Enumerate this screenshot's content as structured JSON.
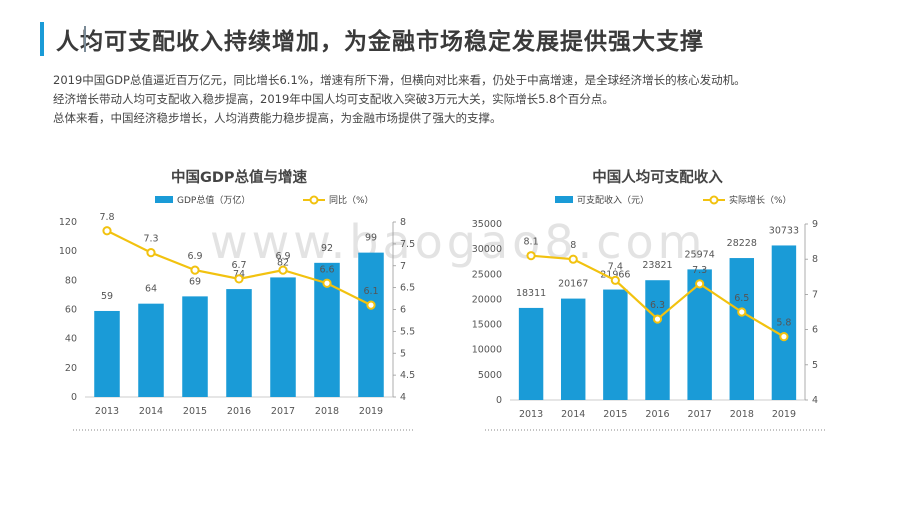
{
  "page_title": "人均可支配收入持续增加，为金融市场稳定发展提供强大支撑",
  "intro": [
    "2019中国GDP总值逼近百万亿元，同比增长6.1%，增速有所下滑，但横向对比来看，仍处于中高增速，是全球经济增长的核心发动机。",
    "经济增长带动人均可支配收入稳步提高，2019年中国人均可支配收入突破3万元大关，实际增长5.8个百分点。",
    "总体来看，中国经济稳步增长，人均消费能力稳步提高，为金融市场提供了强大的支撑。"
  ],
  "watermark": "www.baogao8.com",
  "colors": {
    "bar": "#1a9bd7",
    "line": "#f2c20f",
    "accent": "#1a9bd7"
  },
  "chart_data": [
    {
      "type": "bar",
      "title": "中国GDP总值与增速",
      "categories": [
        "2013",
        "2014",
        "2015",
        "2016",
        "2017",
        "2018",
        "2019"
      ],
      "series": [
        {
          "name": "GDP总值（万亿）",
          "kind": "bar",
          "axis": "left",
          "values": [
            59,
            64,
            69,
            74,
            82,
            92,
            99
          ],
          "labels": [
            "59",
            "64",
            "69",
            "74",
            "82",
            "92",
            "99"
          ]
        },
        {
          "name": "同比（%）",
          "kind": "line",
          "axis": "right",
          "values": [
            7.8,
            7.3,
            6.9,
            6.7,
            6.9,
            6.6,
            6.1
          ],
          "labels": [
            "7.8",
            "7.3",
            "6.9",
            "6.7",
            "6.9",
            "6.6",
            "6.1"
          ]
        }
      ],
      "left_axis": {
        "ylim": [
          0,
          120
        ],
        "ticks": [
          "0",
          "20",
          "40",
          "60",
          "80",
          "100",
          "120"
        ]
      },
      "right_axis": {
        "ylim": [
          4,
          8
        ],
        "ticks": [
          "4",
          "4.5",
          "5",
          "5.5",
          "6",
          "6.5",
          "7",
          "7.5",
          "8"
        ]
      },
      "legend": "top"
    },
    {
      "type": "bar",
      "title": "中国人均可支配收入",
      "categories": [
        "2013",
        "2014",
        "2015",
        "2016",
        "2017",
        "2018",
        "2019"
      ],
      "series": [
        {
          "name": "可支配收入（元）",
          "kind": "bar",
          "axis": "left",
          "values": [
            18311,
            20167,
            21966,
            23821,
            25974,
            28228,
            30733
          ],
          "labels": [
            "18311",
            "20167",
            "21966",
            "23821",
            "25974",
            "28228",
            "30733"
          ]
        },
        {
          "name": "实际增长（%）",
          "kind": "line",
          "axis": "right",
          "values": [
            8.1,
            8,
            7.4,
            6.3,
            7.3,
            6.5,
            5.8
          ],
          "labels": [
            "8.1",
            "8",
            "7.4",
            "6.3",
            "7.3",
            "6.5",
            "5.8"
          ]
        }
      ],
      "left_axis": {
        "ylim": [
          0,
          35000
        ],
        "ticks": [
          "0",
          "5000",
          "10000",
          "15000",
          "20000",
          "25000",
          "30000",
          "35000"
        ]
      },
      "right_axis": {
        "ylim": [
          4,
          9
        ],
        "ticks": [
          "4",
          "5",
          "6",
          "7",
          "8",
          "9"
        ]
      },
      "legend": "top"
    }
  ]
}
